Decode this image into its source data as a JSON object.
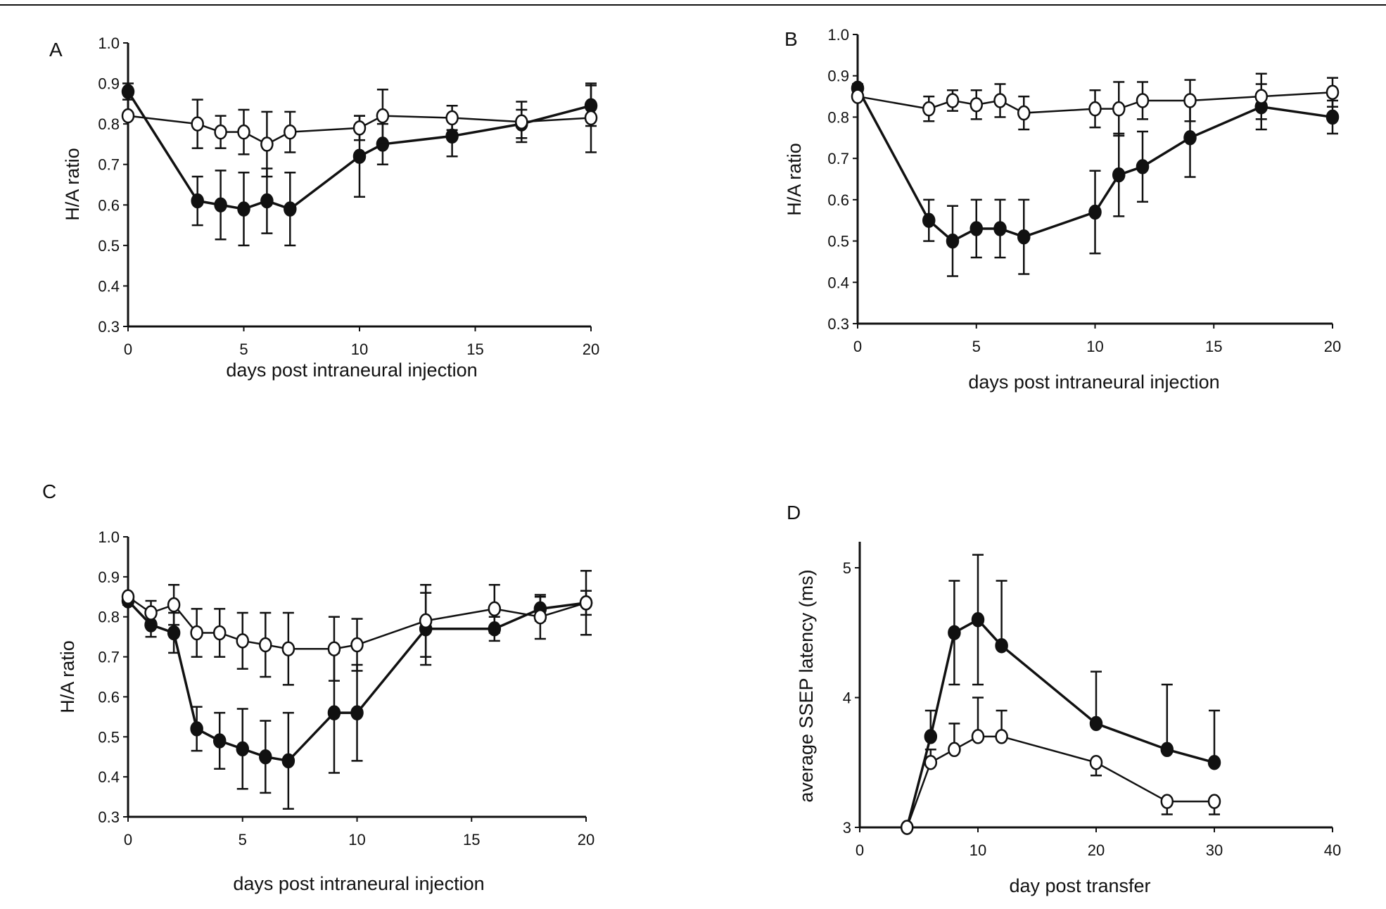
{
  "chart_data": [
    {
      "panel_label": "A",
      "type": "line",
      "xlabel": "days post intraneural injection",
      "ylabel": "H/A ratio",
      "xlim": [
        0,
        20
      ],
      "ylim": [
        0.3,
        1.0
      ],
      "xticks": [
        0,
        5,
        10,
        15,
        20
      ],
      "yticks": [
        0.3,
        0.4,
        0.5,
        0.6,
        0.7,
        0.8,
        0.9,
        1.0
      ],
      "ytick_labels": [
        "0.3",
        "0.4",
        "0.5",
        "0.6",
        "0.7",
        "0.8",
        "0.9",
        "1.0"
      ],
      "grid": false,
      "series": [
        {
          "marker": "filled",
          "points": [
            {
              "x": 0,
              "y": 0.88,
              "err": 0.02
            },
            {
              "x": 3,
              "y": 0.61,
              "err": 0.06
            },
            {
              "x": 4,
              "y": 0.6,
              "err": 0.085
            },
            {
              "x": 5,
              "y": 0.59,
              "err": 0.09
            },
            {
              "x": 6,
              "y": 0.61,
              "err": 0.08
            },
            {
              "x": 7,
              "y": 0.59,
              "err": 0.09
            },
            {
              "x": 10,
              "y": 0.72,
              "err": 0.1
            },
            {
              "x": 11,
              "y": 0.75,
              "err": 0.05
            },
            {
              "x": 14,
              "y": 0.77,
              "err": 0.05
            },
            {
              "x": 17,
              "y": 0.8,
              "err": 0.035
            },
            {
              "x": 20,
              "y": 0.845,
              "err": 0.05
            }
          ]
        },
        {
          "marker": "open",
          "points": [
            {
              "x": 0,
              "y": 0.82,
              "err": 0
            },
            {
              "x": 3,
              "y": 0.8,
              "err": 0.06
            },
            {
              "x": 4,
              "y": 0.78,
              "err": 0.04
            },
            {
              "x": 5,
              "y": 0.78,
              "err": 0.055
            },
            {
              "x": 6,
              "y": 0.75,
              "err": 0.08
            },
            {
              "x": 7,
              "y": 0.78,
              "err": 0.05
            },
            {
              "x": 10,
              "y": 0.79,
              "err": 0.03
            },
            {
              "x": 11,
              "y": 0.82,
              "err": 0.065
            },
            {
              "x": 14,
              "y": 0.815,
              "err": 0.03
            },
            {
              "x": 17,
              "y": 0.805,
              "err": 0.05
            },
            {
              "x": 20,
              "y": 0.815,
              "err": 0.085
            }
          ]
        }
      ]
    },
    {
      "panel_label": "B",
      "type": "line",
      "xlabel": "days post intraneural injection",
      "ylabel": "H/A ratio",
      "xlim": [
        0,
        20
      ],
      "ylim": [
        0.3,
        1.0
      ],
      "xticks": [
        0,
        5,
        10,
        15,
        20
      ],
      "yticks": [
        0.3,
        0.4,
        0.5,
        0.6,
        0.7,
        0.8,
        0.9,
        1.0
      ],
      "ytick_labels": [
        "0.3",
        "0.4",
        "0.5",
        "0.6",
        "0.7",
        "0.8",
        "0.9",
        "1.0"
      ],
      "grid": false,
      "series": [
        {
          "marker": "filled",
          "points": [
            {
              "x": 0,
              "y": 0.87,
              "err": 0.01
            },
            {
              "x": 3,
              "y": 0.55,
              "err": 0.05
            },
            {
              "x": 4,
              "y": 0.5,
              "err": 0.085
            },
            {
              "x": 5,
              "y": 0.53,
              "err": 0.07
            },
            {
              "x": 6,
              "y": 0.53,
              "err": 0.07
            },
            {
              "x": 7,
              "y": 0.51,
              "err": 0.09
            },
            {
              "x": 10,
              "y": 0.57,
              "err": 0.1
            },
            {
              "x": 11,
              "y": 0.66,
              "err": 0.1
            },
            {
              "x": 12,
              "y": 0.68,
              "err": 0.085
            },
            {
              "x": 14,
              "y": 0.75,
              "err": 0.095
            },
            {
              "x": 17,
              "y": 0.825,
              "err": 0.055
            },
            {
              "x": 20,
              "y": 0.8,
              "err": 0.04
            }
          ]
        },
        {
          "marker": "open",
          "points": [
            {
              "x": 0,
              "y": 0.85,
              "err": 0
            },
            {
              "x": 3,
              "y": 0.82,
              "err": 0.03
            },
            {
              "x": 4,
              "y": 0.84,
              "err": 0.025
            },
            {
              "x": 5,
              "y": 0.83,
              "err": 0.035
            },
            {
              "x": 6,
              "y": 0.84,
              "err": 0.04
            },
            {
              "x": 7,
              "y": 0.81,
              "err": 0.04
            },
            {
              "x": 10,
              "y": 0.82,
              "err": 0.045
            },
            {
              "x": 11,
              "y": 0.82,
              "err": 0.065
            },
            {
              "x": 12,
              "y": 0.84,
              "err": 0.045
            },
            {
              "x": 14,
              "y": 0.84,
              "err": 0.05
            },
            {
              "x": 17,
              "y": 0.85,
              "err": 0.055
            },
            {
              "x": 20,
              "y": 0.86,
              "err": 0.035
            }
          ]
        }
      ]
    },
    {
      "panel_label": "C",
      "type": "line",
      "xlabel": "days post intraneural injection",
      "ylabel": "H/A ratio",
      "xlim": [
        0,
        20
      ],
      "ylim": [
        0.3,
        1.0
      ],
      "xticks": [
        0,
        5,
        10,
        15,
        20
      ],
      "yticks": [
        0.3,
        0.4,
        0.5,
        0.6,
        0.7,
        0.8,
        0.9,
        1.0
      ],
      "ytick_labels": [
        "0.3",
        "0.4",
        "0.5",
        "0.6",
        "0.7",
        "0.8",
        "0.9",
        "1.0"
      ],
      "grid": false,
      "series": [
        {
          "marker": "filled",
          "points": [
            {
              "x": 0,
              "y": 0.84,
              "err": 0.01
            },
            {
              "x": 1,
              "y": 0.78,
              "err": 0.03
            },
            {
              "x": 2,
              "y": 0.76,
              "err": 0.05
            },
            {
              "x": 3,
              "y": 0.52,
              "err": 0.055
            },
            {
              "x": 4,
              "y": 0.49,
              "err": 0.07
            },
            {
              "x": 5,
              "y": 0.47,
              "err": 0.1
            },
            {
              "x": 6,
              "y": 0.45,
              "err": 0.09
            },
            {
              "x": 7,
              "y": 0.44,
              "err": 0.12
            },
            {
              "x": 9,
              "y": 0.56,
              "err": 0.15
            },
            {
              "x": 10,
              "y": 0.56,
              "err": 0.12
            },
            {
              "x": 13,
              "y": 0.77,
              "err": 0.09
            },
            {
              "x": 16,
              "y": 0.77,
              "err": 0.03
            },
            {
              "x": 18,
              "y": 0.82,
              "err": 0.03
            },
            {
              "x": 20,
              "y": 0.835,
              "err": 0.03
            }
          ]
        },
        {
          "marker": "open",
          "points": [
            {
              "x": 0,
              "y": 0.85,
              "err": 0
            },
            {
              "x": 1,
              "y": 0.81,
              "err": 0.03
            },
            {
              "x": 2,
              "y": 0.83,
              "err": 0.05
            },
            {
              "x": 3,
              "y": 0.76,
              "err": 0.06
            },
            {
              "x": 4,
              "y": 0.76,
              "err": 0.06
            },
            {
              "x": 5,
              "y": 0.74,
              "err": 0.07
            },
            {
              "x": 6,
              "y": 0.73,
              "err": 0.08
            },
            {
              "x": 7,
              "y": 0.72,
              "err": 0.09
            },
            {
              "x": 9,
              "y": 0.72,
              "err": 0.08
            },
            {
              "x": 10,
              "y": 0.73,
              "err": 0.065
            },
            {
              "x": 13,
              "y": 0.79,
              "err": 0.09
            },
            {
              "x": 16,
              "y": 0.82,
              "err": 0.06
            },
            {
              "x": 18,
              "y": 0.8,
              "err": 0.055
            },
            {
              "x": 20,
              "y": 0.835,
              "err": 0.08
            }
          ]
        }
      ]
    },
    {
      "panel_label": "D",
      "type": "line",
      "xlabel": "day post transfer",
      "ylabel": "average SSEP latency (ms)",
      "xlim": [
        0,
        40
      ],
      "ylim": [
        3,
        5.2
      ],
      "xticks": [
        0,
        10,
        20,
        30,
        40
      ],
      "yticks": [
        3,
        4,
        5
      ],
      "ytick_labels": [
        "3",
        "4",
        "5"
      ],
      "grid": false,
      "series": [
        {
          "marker": "filled",
          "points": [
            {
              "x": 4,
              "y": 3.0,
              "err_up": 0,
              "err_down": 0
            },
            {
              "x": 6,
              "y": 3.7,
              "err_up": 0.2,
              "err_down": 0
            },
            {
              "x": 8,
              "y": 4.5,
              "err_up": 0.4,
              "err_down": 0.4
            },
            {
              "x": 10,
              "y": 4.6,
              "err_up": 0.5,
              "err_down": 0.5
            },
            {
              "x": 12,
              "y": 4.4,
              "err_up": 0.5,
              "err_down": 0
            },
            {
              "x": 20,
              "y": 3.8,
              "err_up": 0.4,
              "err_down": 0
            },
            {
              "x": 26,
              "y": 3.6,
              "err_up": 0.5,
              "err_down": 0
            },
            {
              "x": 30,
              "y": 3.5,
              "err_up": 0.4,
              "err_down": 0
            }
          ]
        },
        {
          "marker": "open",
          "points": [
            {
              "x": 4,
              "y": 3.0,
              "err_up": 0,
              "err_down": 0
            },
            {
              "x": 6,
              "y": 3.5,
              "err_up": 0.1,
              "err_down": 0
            },
            {
              "x": 8,
              "y": 3.6,
              "err_up": 0.2,
              "err_down": 0
            },
            {
              "x": 10,
              "y": 3.7,
              "err_up": 0.3,
              "err_down": 0
            },
            {
              "x": 12,
              "y": 3.7,
              "err_up": 0.2,
              "err_down": 0
            },
            {
              "x": 20,
              "y": 3.5,
              "err_up": 0,
              "err_down": 0.1
            },
            {
              "x": 26,
              "y": 3.2,
              "err_up": 0,
              "err_down": 0.1
            },
            {
              "x": 30,
              "y": 3.2,
              "err_up": 0,
              "err_down": 0.1
            }
          ]
        }
      ]
    }
  ]
}
